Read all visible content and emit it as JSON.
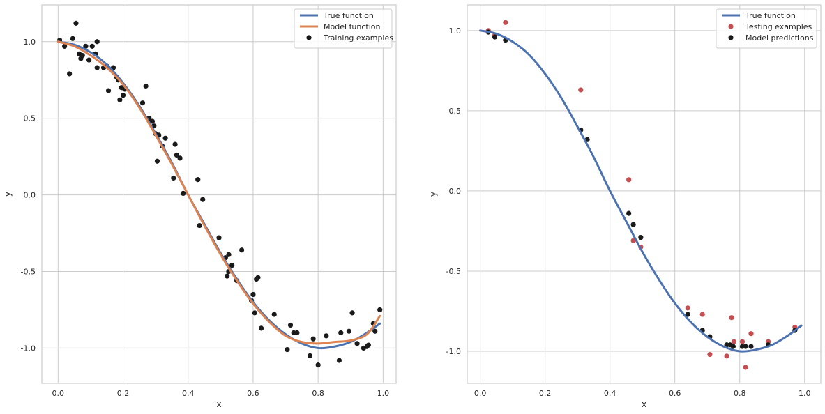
{
  "chart_data": [
    {
      "type": "scatter",
      "xlabel": "x",
      "ylabel": "y",
      "xlim": [
        -0.05,
        1.04
      ],
      "ylim": [
        -1.23,
        1.24
      ],
      "xticks": [
        "0.0",
        "0.2",
        "0.4",
        "0.6",
        "0.8",
        "1.0"
      ],
      "yticks": [
        "-1.0",
        "-0.5",
        "0.0",
        "0.5",
        "1.0"
      ],
      "grid": true,
      "legend_position": "top-right",
      "colors": {
        "true_function": "#4c72b0",
        "model_function": "#dd8452",
        "training": "#1a1a1a"
      },
      "series": [
        {
          "name": "True function",
          "kind": "line",
          "x": [
            0.0,
            0.05,
            0.1,
            0.15,
            0.2,
            0.25,
            0.3,
            0.35,
            0.4,
            0.45,
            0.5,
            0.55,
            0.6,
            0.65,
            0.7,
            0.75,
            0.8,
            0.85,
            0.9,
            0.95,
            0.99
          ],
          "y": [
            1.0,
            0.98,
            0.93,
            0.85,
            0.73,
            0.58,
            0.4,
            0.21,
            0.0,
            -0.19,
            -0.38,
            -0.55,
            -0.7,
            -0.82,
            -0.91,
            -0.97,
            -1.0,
            -0.99,
            -0.96,
            -0.9,
            -0.84
          ]
        },
        {
          "name": "Model function",
          "kind": "line",
          "x": [
            0.0,
            0.05,
            0.1,
            0.15,
            0.2,
            0.25,
            0.3,
            0.35,
            0.4,
            0.45,
            0.5,
            0.55,
            0.6,
            0.65,
            0.7,
            0.75,
            0.8,
            0.85,
            0.9,
            0.95,
            0.99
          ],
          "y": [
            1.0,
            0.97,
            0.91,
            0.83,
            0.72,
            0.57,
            0.39,
            0.2,
            0.0,
            -0.2,
            -0.39,
            -0.56,
            -0.71,
            -0.83,
            -0.92,
            -0.96,
            -0.97,
            -0.96,
            -0.95,
            -0.91,
            -0.79
          ]
        },
        {
          "name": "Training examples",
          "kind": "scatter",
          "x": [
            0.005,
            0.02,
            0.035,
            0.045,
            0.055,
            0.065,
            0.07,
            0.075,
            0.085,
            0.095,
            0.105,
            0.115,
            0.12,
            0.12,
            0.14,
            0.15,
            0.155,
            0.17,
            0.18,
            0.185,
            0.19,
            0.195,
            0.2,
            0.205,
            0.26,
            0.27,
            0.28,
            0.29,
            0.295,
            0.3,
            0.305,
            0.31,
            0.32,
            0.33,
            0.355,
            0.36,
            0.365,
            0.375,
            0.385,
            0.43,
            0.435,
            0.445,
            0.495,
            0.515,
            0.52,
            0.525,
            0.525,
            0.535,
            0.55,
            0.565,
            0.595,
            0.6,
            0.605,
            0.61,
            0.615,
            0.625,
            0.665,
            0.705,
            0.715,
            0.725,
            0.735,
            0.775,
            0.785,
            0.8,
            0.825,
            0.865,
            0.87,
            0.895,
            0.905,
            0.92,
            0.94,
            0.95,
            0.955,
            0.97,
            0.975,
            0.99
          ],
          "y": [
            1.01,
            0.97,
            0.79,
            1.02,
            1.12,
            0.92,
            0.89,
            0.91,
            0.97,
            0.88,
            0.97,
            0.92,
            1.0,
            0.83,
            0.83,
            0.84,
            0.68,
            0.83,
            0.77,
            0.75,
            0.62,
            0.7,
            0.65,
            0.69,
            0.6,
            0.71,
            0.5,
            0.48,
            0.45,
            0.4,
            0.22,
            0.39,
            0.32,
            0.37,
            0.11,
            0.33,
            0.26,
            0.24,
            0.01,
            0.1,
            -0.2,
            -0.03,
            -0.28,
            -0.41,
            -0.53,
            -0.39,
            -0.5,
            -0.46,
            -0.56,
            -0.36,
            -0.69,
            -0.65,
            -0.77,
            -0.55,
            -0.54,
            -0.87,
            -0.78,
            -1.01,
            -0.85,
            -0.9,
            -0.9,
            -1.05,
            -0.94,
            -1.11,
            -0.92,
            -1.08,
            -0.9,
            -0.89,
            -0.77,
            -0.97,
            -1.0,
            -0.99,
            -0.98,
            -0.84,
            -0.89,
            -0.75
          ]
        }
      ]
    },
    {
      "type": "scatter",
      "xlabel": "x",
      "ylabel": "y",
      "xlim": [
        -0.04,
        1.05
      ],
      "ylim": [
        -1.2,
        1.16
      ],
      "xticks": [
        "0.0",
        "0.2",
        "0.4",
        "0.6",
        "0.8",
        "1.0"
      ],
      "yticks": [
        "-1.0",
        "-0.5",
        "0.0",
        "0.5",
        "1.0"
      ],
      "grid": true,
      "legend_position": "top-right",
      "colors": {
        "true_function": "#4c72b0",
        "testing": "#c44e52",
        "predictions": "#1a1a1a"
      },
      "series": [
        {
          "name": "True function",
          "kind": "line",
          "x": [
            0.0,
            0.05,
            0.1,
            0.15,
            0.2,
            0.25,
            0.3,
            0.35,
            0.4,
            0.45,
            0.5,
            0.55,
            0.6,
            0.65,
            0.7,
            0.75,
            0.8,
            0.85,
            0.9,
            0.95,
            0.99
          ],
          "y": [
            1.0,
            0.98,
            0.93,
            0.85,
            0.73,
            0.58,
            0.4,
            0.21,
            0.0,
            -0.19,
            -0.38,
            -0.55,
            -0.7,
            -0.82,
            -0.91,
            -0.97,
            -1.0,
            -0.99,
            -0.96,
            -0.9,
            -0.84
          ]
        },
        {
          "name": "Testing examples",
          "kind": "scatter",
          "x": [
            0.025,
            0.045,
            0.078,
            0.31,
            0.458,
            0.472,
            0.495,
            0.64,
            0.685,
            0.708,
            0.76,
            0.775,
            0.782,
            0.808,
            0.818,
            0.835,
            0.888,
            0.97
          ],
          "y": [
            1.0,
            0.97,
            1.05,
            0.63,
            0.07,
            -0.31,
            -0.35,
            -0.73,
            -0.77,
            -1.02,
            -1.03,
            -0.79,
            -0.94,
            -0.94,
            -1.1,
            -0.89,
            -0.94,
            -0.85
          ]
        },
        {
          "name": "Model predictions",
          "kind": "scatter",
          "x": [
            0.025,
            0.045,
            0.078,
            0.31,
            0.33,
            0.458,
            0.472,
            0.495,
            0.64,
            0.685,
            0.708,
            0.76,
            0.77,
            0.78,
            0.808,
            0.818,
            0.835,
            0.888,
            0.97
          ],
          "y": [
            0.99,
            0.96,
            0.94,
            0.38,
            0.32,
            -0.14,
            -0.21,
            -0.29,
            -0.77,
            -0.87,
            -0.91,
            -0.96,
            -0.96,
            -0.97,
            -0.97,
            -0.97,
            -0.97,
            -0.96,
            -0.87
          ]
        }
      ]
    }
  ]
}
